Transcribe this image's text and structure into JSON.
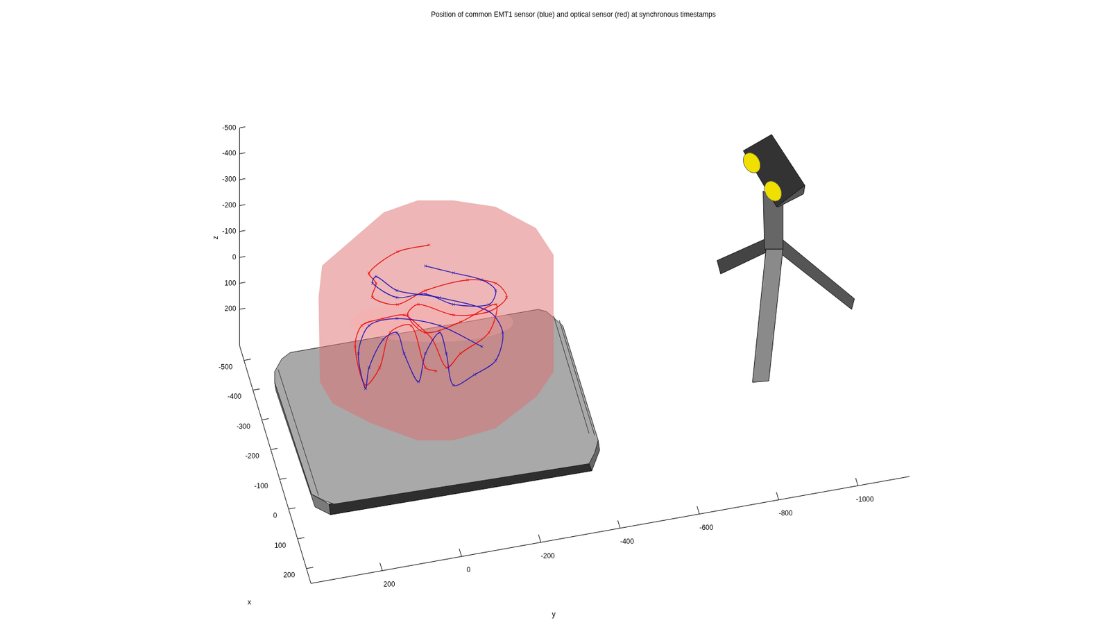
{
  "chart_data": {
    "type": "scatter3d",
    "title": "Position of common EMT1 sensor (blue) and optical sensor (red) at synchronous timestamps",
    "x_label": "x",
    "y_label": "y",
    "z_label": "z",
    "xlim": [
      -550,
      250
    ],
    "ylim": [
      -1130,
      380
    ],
    "zlim": [
      -500,
      340
    ],
    "xticks": [
      -500,
      -400,
      -300,
      -200,
      -100,
      0,
      100,
      200
    ],
    "yticks": [
      200,
      0,
      -200,
      -400,
      -600,
      -800,
      -1000
    ],
    "zticks": [
      -500,
      -400,
      -300,
      -200,
      -100,
      0,
      100,
      200
    ],
    "grid": false,
    "series": [
      {
        "color": "#2a1ab8",
        "marker": "x",
        "line_style": "solid",
        "x": [
          -100,
          -100,
          -100,
          -100,
          -100,
          -100,
          -100,
          -100,
          -100,
          -100,
          -100,
          -100,
          -100,
          -100,
          -100,
          -100,
          -100,
          -100,
          -100,
          -100,
          -100,
          -100,
          -100,
          -100,
          -100,
          -100,
          -100,
          -100,
          -100,
          -100,
          -100
        ],
        "y": [
          14,
          -57,
          -129,
          -164,
          -147,
          -57,
          14,
          86,
          148,
          139,
          86,
          -22,
          -147,
          -182,
          -164,
          -111,
          -57,
          -39,
          -22,
          14,
          32,
          68,
          86,
          121,
          157,
          166,
          184,
          157,
          86,
          -22,
          -129
        ],
        "z": [
          -385,
          -339,
          -292,
          -241,
          -191,
          -216,
          -276,
          -282,
          -354,
          -378,
          -309,
          -252,
          -164,
          -72,
          32,
          72,
          99,
          -29,
          -116,
          -44,
          61,
          -58,
          -145,
          -128,
          -28,
          51,
          -90,
          -192,
          -200,
          -143,
          -32
        ]
      },
      {
        "color": "#ee1111",
        "marker": "x",
        "line_style": "solid",
        "x": [
          -150,
          -150,
          -150,
          -150,
          -150,
          -150,
          -150,
          -150,
          -150,
          -150,
          -150,
          -150,
          -150,
          -150,
          -150,
          -150,
          -150,
          -150,
          -150,
          -150,
          -150,
          -150,
          -150,
          -150,
          -150,
          -150,
          -150,
          -150,
          -150,
          -150,
          -150,
          -150
        ],
        "y": [
          -6,
          74,
          146,
          128,
          137,
          74,
          3,
          -104,
          -176,
          -203,
          -158,
          -69,
          21,
          48,
          3,
          -86,
          -176,
          -158,
          -86,
          -51,
          -15,
          21,
          56,
          110,
          164,
          181,
          155,
          119,
          92,
          39,
          3,
          -24
        ],
        "z": [
          -404,
          -399,
          -337,
          -291,
          -239,
          -194,
          -229,
          -241,
          -208,
          -146,
          -103,
          -114,
          -180,
          -146,
          -65,
          -82,
          -126,
          -21,
          41,
          86,
          -33,
          -98,
          -148,
          -149,
          -137,
          -59,
          98,
          40,
          -90,
          -102,
          71,
          92
        ]
      }
    ]
  }
}
